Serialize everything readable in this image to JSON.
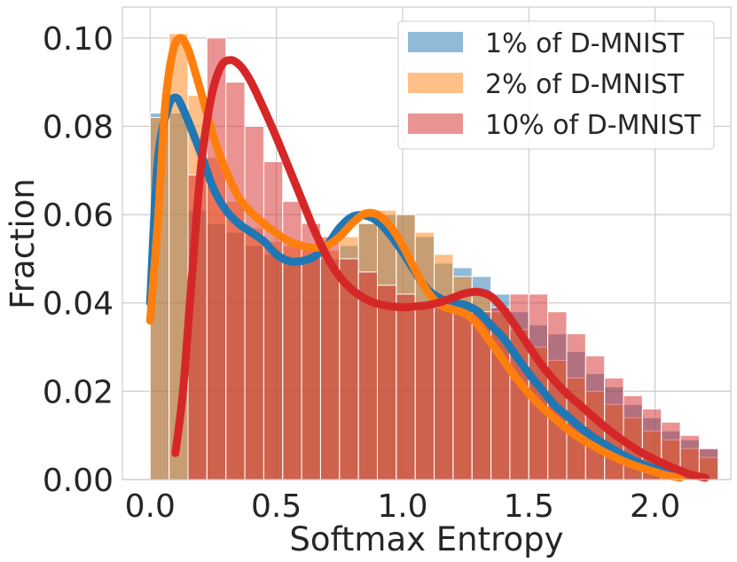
{
  "chart_data": {
    "type": "histogram",
    "xlabel": "Softmax Entropy",
    "ylabel": "Fraction",
    "xlim": [
      -0.11,
      2.3
    ],
    "ylim": [
      0.0,
      0.107
    ],
    "x_ticks": [
      {
        "value": 0.0,
        "label": "0.0"
      },
      {
        "value": 0.5,
        "label": "0.5"
      },
      {
        "value": 1.0,
        "label": "1.0"
      },
      {
        "value": 1.5,
        "label": "1.5"
      },
      {
        "value": 2.0,
        "label": "2.0"
      }
    ],
    "y_ticks": [
      {
        "value": 0.0,
        "label": "0.00"
      },
      {
        "value": 0.02,
        "label": "0.02"
      },
      {
        "value": 0.04,
        "label": "0.04"
      },
      {
        "value": 0.06,
        "label": "0.06"
      },
      {
        "value": 0.08,
        "label": "0.08"
      },
      {
        "value": 0.1,
        "label": "0.10"
      }
    ],
    "grid": true,
    "legend_position": "top-right",
    "legend": [
      {
        "label": "1% of D-MNIST",
        "color": "#1f77b4"
      },
      {
        "label": "2% of D-MNIST",
        "color": "#ff7f0e"
      },
      {
        "label": "10% of D-MNIST",
        "color": "#d62728"
      }
    ],
    "series": [
      {
        "name": "1% of D-MNIST",
        "color": "#1f77b4",
        "bin_width": 0.075,
        "bin_start": 0.0,
        "hist": [
          0.083,
          0.083,
          0.061,
          0.058,
          0.056,
          0.053,
          0.051,
          0.05,
          0.05,
          0.05,
          0.053,
          0.058,
          0.06,
          0.06,
          0.055,
          0.049,
          0.048,
          0.046,
          0.042,
          0.038,
          0.035,
          0.033,
          0.029,
          0.024,
          0.021,
          0.017,
          0.014,
          0.011,
          0.009,
          0.007
        ],
        "kde": [
          [
            0.0,
            0.04
          ],
          [
            0.03,
            0.072
          ],
          [
            0.07,
            0.084
          ],
          [
            0.1,
            0.0865
          ],
          [
            0.13,
            0.084
          ],
          [
            0.2,
            0.074
          ],
          [
            0.25,
            0.066
          ],
          [
            0.3,
            0.061
          ],
          [
            0.35,
            0.058
          ],
          [
            0.4,
            0.056
          ],
          [
            0.45,
            0.054
          ],
          [
            0.5,
            0.051
          ],
          [
            0.55,
            0.0495
          ],
          [
            0.6,
            0.0495
          ],
          [
            0.65,
            0.0505
          ],
          [
            0.7,
            0.053
          ],
          [
            0.75,
            0.057
          ],
          [
            0.8,
            0.0595
          ],
          [
            0.85,
            0.0598
          ],
          [
            0.9,
            0.0585
          ],
          [
            0.95,
            0.0555
          ],
          [
            1.0,
            0.0515
          ],
          [
            1.05,
            0.047
          ],
          [
            1.1,
            0.043
          ],
          [
            1.15,
            0.041
          ],
          [
            1.2,
            0.04
          ],
          [
            1.25,
            0.0395
          ],
          [
            1.3,
            0.038
          ],
          [
            1.35,
            0.035
          ],
          [
            1.4,
            0.032
          ],
          [
            1.45,
            0.028
          ],
          [
            1.5,
            0.024
          ],
          [
            1.55,
            0.0205
          ],
          [
            1.6,
            0.017
          ],
          [
            1.65,
            0.0145
          ],
          [
            1.7,
            0.012
          ],
          [
            1.75,
            0.0098
          ],
          [
            1.8,
            0.008
          ],
          [
            1.85,
            0.0063
          ],
          [
            1.9,
            0.0048
          ],
          [
            1.95,
            0.0035
          ],
          [
            2.0,
            0.0025
          ],
          [
            2.05,
            0.0015
          ],
          [
            2.1,
            0.0008
          ]
        ]
      },
      {
        "name": "2% of D-MNIST",
        "color": "#ff7f0e",
        "bin_width": 0.075,
        "bin_start": 0.0,
        "hist": [
          0.082,
          0.101,
          0.087,
          0.073,
          0.063,
          0.057,
          0.054,
          0.053,
          0.052,
          0.052,
          0.055,
          0.058,
          0.061,
          0.06,
          0.056,
          0.051,
          0.046,
          0.042,
          0.038,
          0.034,
          0.03,
          0.027,
          0.023,
          0.02,
          0.017,
          0.014,
          0.011,
          0.009,
          0.007,
          0.005
        ],
        "kde": [
          [
            0.0,
            0.036
          ],
          [
            0.03,
            0.058
          ],
          [
            0.06,
            0.085
          ],
          [
            0.09,
            0.097
          ],
          [
            0.12,
            0.1
          ],
          [
            0.15,
            0.0975
          ],
          [
            0.18,
            0.092
          ],
          [
            0.22,
            0.084
          ],
          [
            0.26,
            0.076
          ],
          [
            0.3,
            0.07
          ],
          [
            0.35,
            0.064
          ],
          [
            0.4,
            0.0605
          ],
          [
            0.45,
            0.058
          ],
          [
            0.5,
            0.0558
          ],
          [
            0.55,
            0.054
          ],
          [
            0.6,
            0.053
          ],
          [
            0.65,
            0.0525
          ],
          [
            0.7,
            0.053
          ],
          [
            0.75,
            0.055
          ],
          [
            0.8,
            0.058
          ],
          [
            0.85,
            0.0602
          ],
          [
            0.9,
            0.06
          ],
          [
            0.95,
            0.0575
          ],
          [
            1.0,
            0.053
          ],
          [
            1.05,
            0.0475
          ],
          [
            1.1,
            0.0425
          ],
          [
            1.15,
            0.0395
          ],
          [
            1.2,
            0.0385
          ],
          [
            1.25,
            0.0375
          ],
          [
            1.3,
            0.035
          ],
          [
            1.35,
            0.031
          ],
          [
            1.4,
            0.027
          ],
          [
            1.45,
            0.023
          ],
          [
            1.5,
            0.0195
          ],
          [
            1.55,
            0.0165
          ],
          [
            1.6,
            0.014
          ],
          [
            1.65,
            0.0115
          ],
          [
            1.7,
            0.0095
          ],
          [
            1.75,
            0.0078
          ],
          [
            1.8,
            0.0062
          ],
          [
            1.85,
            0.0048
          ],
          [
            1.9,
            0.0036
          ],
          [
            1.95,
            0.0026
          ],
          [
            2.0,
            0.0017
          ],
          [
            2.05,
            0.0009
          ],
          [
            2.1,
            0.0004
          ]
        ]
      },
      {
        "name": "10% of D-MNIST",
        "color": "#d62728",
        "bin_width": 0.075,
        "bin_start": 0.0,
        "hist": [
          0.0,
          0.0,
          0.069,
          0.1,
          0.09,
          0.08,
          0.072,
          0.063,
          0.058,
          0.055,
          0.05,
          0.047,
          0.044,
          0.042,
          0.04,
          0.039,
          0.039,
          0.038,
          0.039,
          0.042,
          0.042,
          0.038,
          0.033,
          0.028,
          0.023,
          0.019,
          0.016,
          0.013,
          0.01,
          0.007
        ],
        "kde": [
          [
            0.1,
            0.006
          ],
          [
            0.13,
            0.02
          ],
          [
            0.16,
            0.042
          ],
          [
            0.2,
            0.07
          ],
          [
            0.24,
            0.086
          ],
          [
            0.28,
            0.0935
          ],
          [
            0.32,
            0.095
          ],
          [
            0.36,
            0.0935
          ],
          [
            0.4,
            0.09
          ],
          [
            0.45,
            0.084
          ],
          [
            0.5,
            0.0775
          ],
          [
            0.55,
            0.0705
          ],
          [
            0.6,
            0.0635
          ],
          [
            0.65,
            0.0565
          ],
          [
            0.7,
            0.0505
          ],
          [
            0.75,
            0.046
          ],
          [
            0.8,
            0.043
          ],
          [
            0.85,
            0.041
          ],
          [
            0.9,
            0.0398
          ],
          [
            0.95,
            0.0393
          ],
          [
            1.0,
            0.039
          ],
          [
            1.05,
            0.0392
          ],
          [
            1.1,
            0.0395
          ],
          [
            1.15,
            0.0402
          ],
          [
            1.2,
            0.0412
          ],
          [
            1.25,
            0.0422
          ],
          [
            1.3,
            0.0425
          ],
          [
            1.35,
            0.0415
          ],
          [
            1.4,
            0.0385
          ],
          [
            1.45,
            0.0345
          ],
          [
            1.5,
            0.0302
          ],
          [
            1.55,
            0.026
          ],
          [
            1.6,
            0.0225
          ],
          [
            1.65,
            0.0195
          ],
          [
            1.7,
            0.017
          ],
          [
            1.75,
            0.0145
          ],
          [
            1.8,
            0.012
          ],
          [
            1.85,
            0.0098
          ],
          [
            1.9,
            0.0078
          ],
          [
            1.95,
            0.006
          ],
          [
            2.0,
            0.0045
          ],
          [
            2.05,
            0.0032
          ],
          [
            2.1,
            0.002
          ],
          [
            2.15,
            0.001
          ],
          [
            2.2,
            0.0004
          ]
        ]
      }
    ]
  }
}
